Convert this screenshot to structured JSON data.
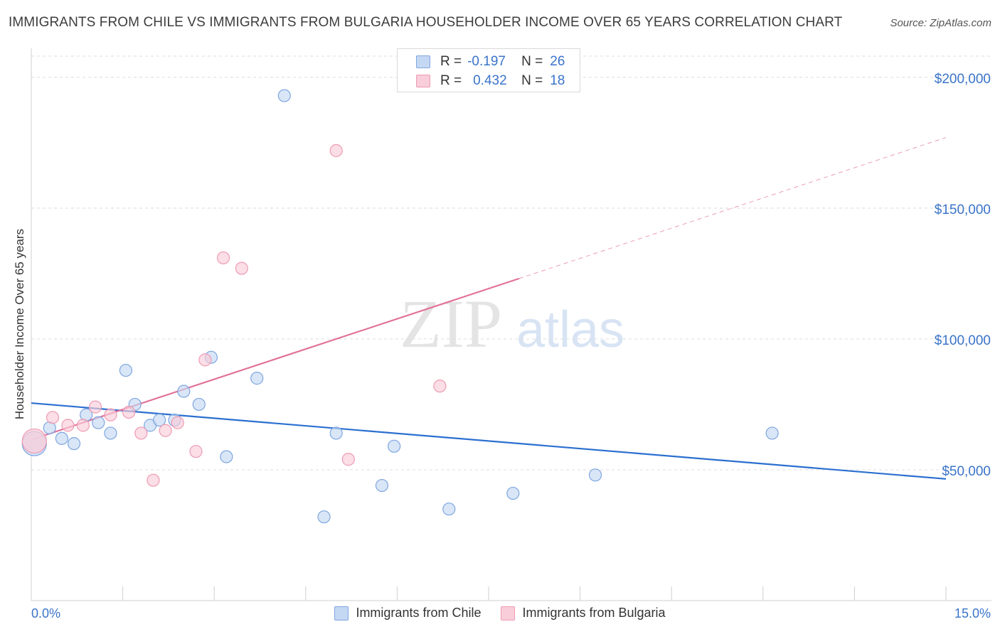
{
  "header": {
    "title": "IMMIGRANTS FROM CHILE VS IMMIGRANTS FROM BULGARIA HOUSEHOLDER INCOME OVER 65 YEARS CORRELATION CHART",
    "source": "Source: ZipAtlas.com"
  },
  "watermark": {
    "zip": "ZIP",
    "atlas": "atlas"
  },
  "legend": {
    "chile": {
      "r_label": "R =",
      "r_value": "-0.197",
      "n_label": "N =",
      "n_value": "26"
    },
    "bulgaria": {
      "r_label": "R =",
      "r_value": "0.432",
      "n_label": "N =",
      "n_value": "18"
    }
  },
  "bottom_legend": {
    "chile": "Immigrants from Chile",
    "bulgaria": "Immigrants from Bulgaria"
  },
  "colors": {
    "chile_fill": "#c5d8f3",
    "chile_stroke": "#7ea6e0",
    "chile_line": "#2b6fd0",
    "bulgaria_fill": "#f9cdd9",
    "bulgaria_stroke": "#ee9ab3",
    "bulgaria_line": "#e2729a",
    "tick_text": "#3a74c9"
  },
  "chart_data": {
    "type": "scatter",
    "title": "IMMIGRANTS FROM CHILE VS IMMIGRANTS FROM BULGARIA HOUSEHOLDER INCOME OVER 65 YEARS CORRELATION CHART",
    "xlabel": "",
    "ylabel": "Householder Income Over 65 years",
    "xlim": [
      0,
      15
    ],
    "ylim": [
      0,
      210000
    ],
    "x_tick_labels": [
      "0.0%",
      "15.0%"
    ],
    "y_ticks": [
      {
        "value": 50000,
        "label": "$50,000"
      },
      {
        "value": 100000,
        "label": "$100,000"
      },
      {
        "value": 150000,
        "label": "$150,000"
      },
      {
        "value": 200000,
        "label": "$200,000"
      }
    ],
    "grid": true,
    "legend_position": "top-center",
    "series": [
      {
        "name": "Immigrants from Chile",
        "color": "#7ea6e0",
        "points": [
          {
            "x": 0.05,
            "y": 60000,
            "big": true
          },
          {
            "x": 0.3,
            "y": 66000
          },
          {
            "x": 0.5,
            "y": 62000
          },
          {
            "x": 0.7,
            "y": 60000
          },
          {
            "x": 0.9,
            "y": 71000
          },
          {
            "x": 1.1,
            "y": 68000
          },
          {
            "x": 1.3,
            "y": 64000
          },
          {
            "x": 1.55,
            "y": 88000
          },
          {
            "x": 1.7,
            "y": 75000
          },
          {
            "x": 1.95,
            "y": 67000
          },
          {
            "x": 2.1,
            "y": 69000
          },
          {
            "x": 2.35,
            "y": 69000
          },
          {
            "x": 2.5,
            "y": 80000
          },
          {
            "x": 2.75,
            "y": 75000
          },
          {
            "x": 2.95,
            "y": 93000
          },
          {
            "x": 3.2,
            "y": 55000
          },
          {
            "x": 3.7,
            "y": 85000
          },
          {
            "x": 4.15,
            "y": 193000
          },
          {
            "x": 4.8,
            "y": 32000
          },
          {
            "x": 5.0,
            "y": 64000
          },
          {
            "x": 5.75,
            "y": 44000
          },
          {
            "x": 5.95,
            "y": 59000
          },
          {
            "x": 6.85,
            "y": 35000
          },
          {
            "x": 7.9,
            "y": 41000
          },
          {
            "x": 9.25,
            "y": 48000
          },
          {
            "x": 12.15,
            "y": 64000
          }
        ],
        "trend": {
          "x": [
            0,
            15
          ],
          "y": [
            75500,
            46500
          ],
          "dashed_from": null
        }
      },
      {
        "name": "Immigrants from Bulgaria",
        "color": "#ee9ab3",
        "points": [
          {
            "x": 0.05,
            "y": 61000,
            "big": true
          },
          {
            "x": 0.35,
            "y": 70000
          },
          {
            "x": 0.6,
            "y": 67000
          },
          {
            "x": 0.85,
            "y": 67000
          },
          {
            "x": 1.05,
            "y": 74000
          },
          {
            "x": 1.3,
            "y": 71000
          },
          {
            "x": 1.6,
            "y": 72000
          },
          {
            "x": 1.8,
            "y": 64000
          },
          {
            "x": 2.0,
            "y": 46000
          },
          {
            "x": 2.2,
            "y": 65000
          },
          {
            "x": 2.4,
            "y": 68000
          },
          {
            "x": 2.7,
            "y": 57000
          },
          {
            "x": 2.85,
            "y": 92000
          },
          {
            "x": 3.15,
            "y": 131000
          },
          {
            "x": 3.45,
            "y": 127000
          },
          {
            "x": 5.0,
            "y": 172000
          },
          {
            "x": 5.2,
            "y": 54000
          },
          {
            "x": 6.7,
            "y": 82000
          }
        ],
        "trend": {
          "x": [
            0,
            15
          ],
          "y": [
            61500,
            177000
          ],
          "dashed_from": 8.0
        }
      }
    ]
  }
}
